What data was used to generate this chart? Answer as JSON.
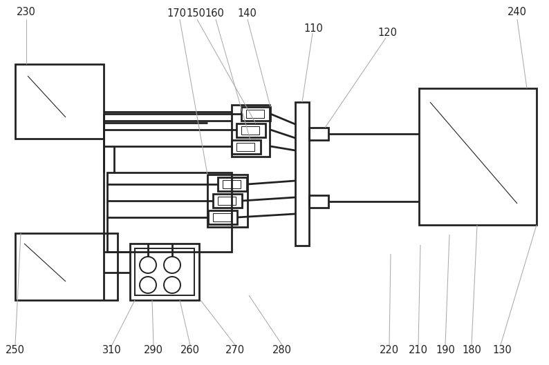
{
  "bg_color": "#ffffff",
  "lc": "#222222",
  "tc": "#aaaaaa",
  "figsize": [
    7.94,
    5.29
  ],
  "dpi": 100,
  "lw_thick": 2.0,
  "lw_med": 1.4,
  "lw_thin": 0.75
}
